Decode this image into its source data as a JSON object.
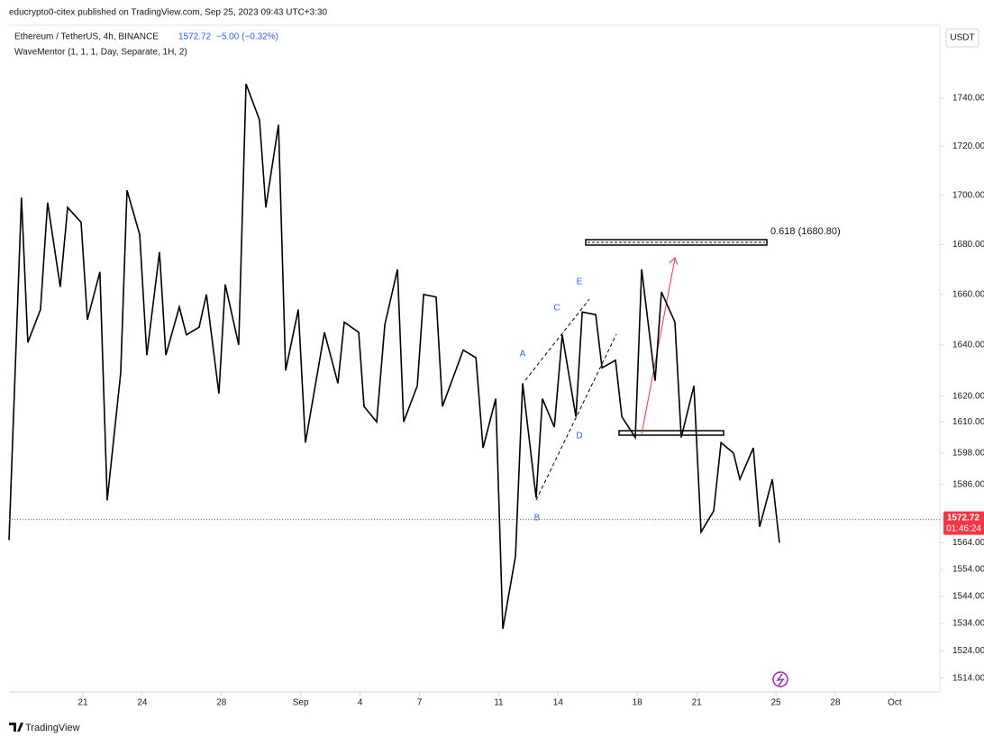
{
  "chart_data": {
    "type": "line",
    "publisher": "educrypto0-citex published on TradingView.com, Sep 25, 2023 09:43 UTC+3:30",
    "title": "Ethereum / TetherUS, 4h, BINANCE",
    "last_price": 1572.72,
    "change": "−5.00 (−0.32%)",
    "indicator": "WaveMentor (1, 1, 1, Day, Separate, 1H, 2)",
    "currency": "USDT",
    "countdown": "01:46:24",
    "brand": "TradingView",
    "annotations": [
      "0.618 (1680.80)",
      "A",
      "B",
      "C",
      "D",
      "E"
    ],
    "color": "#000000",
    "last_price_color": "#f23645",
    "log_scale": true,
    "grid": false,
    "x": [
      17.27,
      17.9,
      18.22,
      18.86,
      19.22,
      19.86,
      20.23,
      20.91,
      21.23,
      21.86,
      22.23,
      22.91,
      23.23,
      23.87,
      24.23,
      24.87,
      25.19,
      25.87,
      26.23,
      26.87,
      27.24,
      27.87,
      28.19,
      28.87,
      29.24,
      29.92,
      30.24,
      30.88,
      31.24,
      31.88,
      32.24,
      33.2,
      33.88,
      34.2,
      34.93,
      35.2,
      35.84,
      36.25,
      36.89,
      37.2,
      37.89,
      38.21,
      38.84,
      39.16,
      40.21,
      40.85,
      41.21,
      41.85,
      42.21,
      42.85,
      43.21,
      43.89,
      44.21,
      44.81,
      45.21,
      45.9,
      46.22,
      46.9,
      47.22,
      47.9,
      48.22,
      48.9,
      49.22,
      49.9,
      50.22,
      50.9,
      51.22,
      51.86,
      52.22,
      52.86,
      53.23,
      53.86,
      54.18,
      54.86,
      55.18,
      55.82,
      56.18
    ],
    "values": [
      1565,
      1699,
      1641,
      1654,
      1697,
      1663,
      1695,
      1689,
      1650,
      1669,
      1580,
      1629,
      1702,
      1684,
      1636,
      1677,
      1636,
      1655,
      1644,
      1647,
      1660,
      1621,
      1664,
      1640,
      1746,
      1731,
      1695,
      1729,
      1630,
      1654,
      1602,
      1645,
      1625,
      1649,
      1645,
      1616,
      1610,
      1648,
      1670,
      1610,
      1624,
      1660,
      1659,
      1616,
      1638,
      1635,
      1600,
      1619,
      1532,
      1559,
      1625,
      1581,
      1619,
      1608,
      1644,
      1612,
      1653,
      1652,
      1631,
      1634,
      1612,
      1604,
      1670,
      1626,
      1661,
      1649,
      1604,
      1624,
      1568,
      1576,
      1602,
      1598,
      1588,
      1600,
      1570,
      1588,
      1564
    ],
    "xlim": [
      17.27,
      64.28
    ],
    "xticks": [
      {
        "value": 21,
        "label": "21"
      },
      {
        "value": 24,
        "label": "24"
      },
      {
        "value": 28,
        "label": "28"
      },
      {
        "value": 32,
        "label": "Sep"
      },
      {
        "value": 35,
        "label": "4"
      },
      {
        "value": 38,
        "label": "7"
      },
      {
        "value": 42,
        "label": "11"
      },
      {
        "value": 45,
        "label": "14"
      },
      {
        "value": 49,
        "label": "18"
      },
      {
        "value": 52,
        "label": "21"
      },
      {
        "value": 56,
        "label": "25"
      },
      {
        "value": 59,
        "label": "28"
      },
      {
        "value": 62,
        "label": "Oct"
      }
    ],
    "ylim": [
      1509,
      1770
    ],
    "yticks": [
      {
        "value": 1740,
        "label": "1740.00"
      },
      {
        "value": 1720,
        "label": "1720.00"
      },
      {
        "value": 1700,
        "label": "1700.00"
      },
      {
        "value": 1680,
        "label": "1680.00"
      },
      {
        "value": 1660,
        "label": "1660.00"
      },
      {
        "value": 1640,
        "label": "1640.00"
      },
      {
        "value": 1620,
        "label": "1620.00"
      },
      {
        "value": 1610,
        "label": "1610.00"
      },
      {
        "value": 1598,
        "label": "1598.00"
      },
      {
        "value": 1586,
        "label": "1586.00"
      },
      {
        "value": 1564,
        "label": "1564.00"
      },
      {
        "value": 1554,
        "label": "1554.00"
      },
      {
        "value": 1544,
        "label": "1544.00"
      },
      {
        "value": 1534,
        "label": "1534.00"
      },
      {
        "value": 1524,
        "label": "1524.00"
      },
      {
        "value": 1514,
        "label": "1514.00"
      }
    ]
  }
}
